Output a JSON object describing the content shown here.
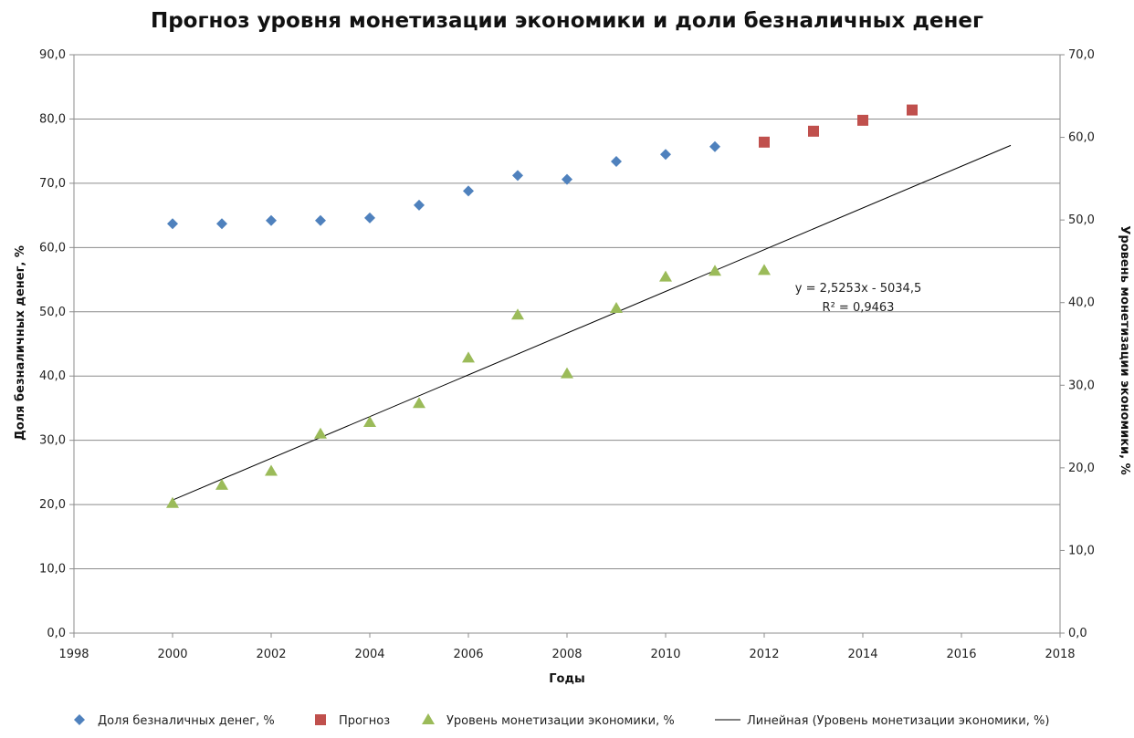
{
  "chart_data": {
    "type": "scatter",
    "title": "Прогноз уровня монетизации экономики и доли безналичных денег",
    "xlabel": "Годы",
    "ylabel_left": "Доля безналичных денег, %",
    "ylabel_right": "Уровень монетизации экономики, %",
    "xlim": [
      1998,
      2018
    ],
    "ylim_left": [
      0,
      90
    ],
    "ylim_right": [
      0,
      70
    ],
    "x_ticks": [
      "1998",
      "2000",
      "2002",
      "2004",
      "2006",
      "2008",
      "2010",
      "2012",
      "2014",
      "2016",
      "2018"
    ],
    "y_left_ticks": [
      "0,0",
      "10,0",
      "20,0",
      "30,0",
      "40,0",
      "50,0",
      "60,0",
      "70,0",
      "80,0",
      "90,0"
    ],
    "y_right_ticks": [
      "0,0",
      "10,0",
      "20,0",
      "30,0",
      "40,0",
      "50,0",
      "60,0",
      "70,0"
    ],
    "grid": true,
    "legend_position": "bottom",
    "series": [
      {
        "name": "Доля безналичных денег, %",
        "axis": "left",
        "marker": "diamond",
        "color": "#4F81BD",
        "points": [
          [
            2000,
            63.7
          ],
          [
            2001,
            63.7
          ],
          [
            2002,
            64.2
          ],
          [
            2003,
            64.2
          ],
          [
            2004,
            64.6
          ],
          [
            2005,
            66.6
          ],
          [
            2006,
            68.8
          ],
          [
            2007,
            71.2
          ],
          [
            2008,
            70.6
          ],
          [
            2009,
            73.4
          ],
          [
            2010,
            74.5
          ],
          [
            2011,
            75.7
          ]
        ]
      },
      {
        "name": "Прогноз",
        "axis": "left",
        "marker": "square",
        "color": "#C0504D",
        "points": [
          [
            2012,
            76.4
          ],
          [
            2013,
            78.1
          ],
          [
            2014,
            79.8
          ],
          [
            2015,
            81.4
          ]
        ]
      },
      {
        "name": "Уровень монетизации экономики, %",
        "axis": "right",
        "marker": "triangle",
        "color": "#9BBB59",
        "points": [
          [
            2000,
            15.7
          ],
          [
            2001,
            17.9
          ],
          [
            2002,
            19.6
          ],
          [
            2003,
            24.1
          ],
          [
            2004,
            25.5
          ],
          [
            2005,
            27.8
          ],
          [
            2006,
            33.3
          ],
          [
            2007,
            38.5
          ],
          [
            2008,
            31.4
          ],
          [
            2009,
            39.3
          ],
          [
            2010,
            43.1
          ],
          [
            2011,
            43.8
          ],
          [
            2012,
            43.9
          ]
        ]
      },
      {
        "name": "Линейная (Уровень монетизации экономики, %)",
        "axis": "right",
        "type": "line",
        "color": "#000000",
        "x": [
          2000,
          2017
        ],
        "slope": 2.5253,
        "intercept": -5034.5
      }
    ],
    "annotations": {
      "equation": "y = 2,5253x - 5034,5",
      "r2": "R² = 0,9463"
    }
  }
}
